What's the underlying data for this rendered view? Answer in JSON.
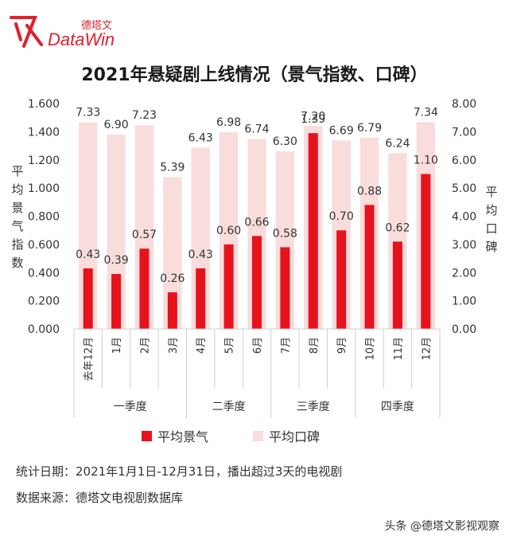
{
  "brand": {
    "name_cn": "德塔文",
    "name_en": "DataWin",
    "accent": "#e0202a"
  },
  "chart_data": {
    "type": "bar",
    "title": "2021年悬疑剧上线情况（景气指数、口碑）",
    "categories": [
      "去年12月",
      "1月",
      "2月",
      "3月",
      "4月",
      "5月",
      "6月",
      "7月",
      "8月",
      "9月",
      "10月",
      "11月",
      "12月"
    ],
    "groups": [
      {
        "label": "一季度",
        "span": [
          0,
          3
        ]
      },
      {
        "label": "二季度",
        "span": [
          4,
          6
        ]
      },
      {
        "label": "三季度",
        "span": [
          7,
          9
        ]
      },
      {
        "label": "四季度",
        "span": [
          10,
          12
        ]
      }
    ],
    "series": [
      {
        "name": "平均景气",
        "axis": "left",
        "color": "#e8121c",
        "values": [
          0.43,
          0.39,
          0.57,
          0.26,
          0.43,
          0.6,
          0.66,
          0.58,
          1.39,
          0.7,
          0.88,
          0.62,
          1.1
        ],
        "labels": [
          "0.43",
          "0.39",
          "0.57",
          "0.26",
          "0.43",
          "0.60",
          "0.66",
          "0.58",
          "1.39",
          "0.70",
          "0.88",
          "0.62",
          "1.10"
        ]
      },
      {
        "name": "平均口碑",
        "axis": "right",
        "color": "#f9dcdc",
        "values": [
          7.33,
          6.9,
          7.23,
          5.39,
          6.43,
          6.98,
          6.74,
          6.3,
          7.2,
          6.69,
          6.79,
          6.24,
          7.34
        ],
        "labels": [
          "7.33",
          "6.90",
          "7.23",
          "5.39",
          "6.43",
          "6.98",
          "6.74",
          "6.30",
          "7.20",
          "6.69",
          "6.79",
          "6.24",
          "7.34"
        ]
      }
    ],
    "y_left": {
      "label": "平均景气指数",
      "min": 0,
      "max": 1.6,
      "ticks": [
        "0.000",
        "0.200",
        "0.400",
        "0.600",
        "0.800",
        "1.000",
        "1.200",
        "1.400",
        "1.600"
      ]
    },
    "y_right": {
      "label": "平均口碑",
      "min": 0,
      "max": 8,
      "ticks": [
        "0.00",
        "1.00",
        "2.00",
        "3.00",
        "4.00",
        "5.00",
        "6.00",
        "7.00",
        "8.00"
      ]
    },
    "grid": false,
    "legend_position": "bottom"
  },
  "footer": {
    "note1": "统计日期：2021年1月1日-12月31日，播出超过3天的电视剧",
    "note2": "数据来源：德塔文电视剧数据库",
    "watermark": "头条 @德塔文影视观察"
  }
}
